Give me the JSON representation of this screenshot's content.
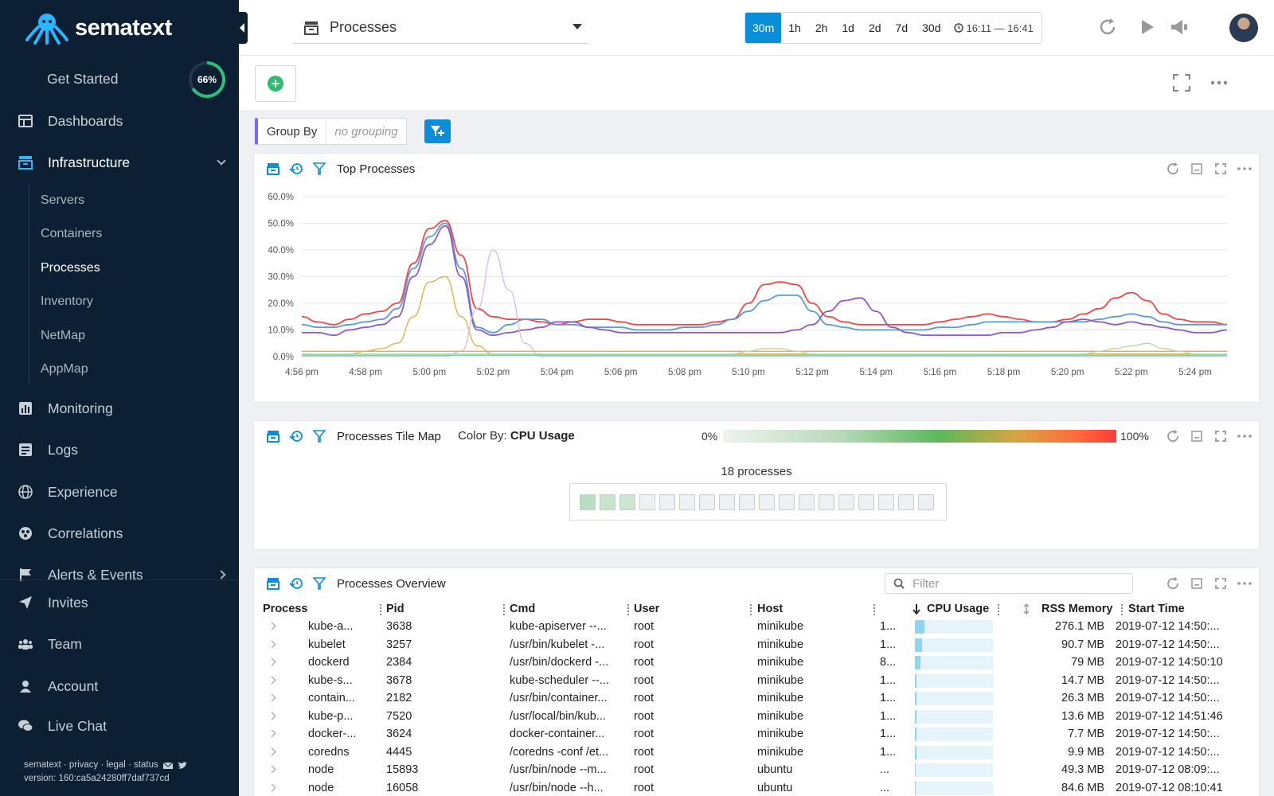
{
  "brand": {
    "name": "sematext"
  },
  "sidebar": {
    "get_started": {
      "label": "Get Started",
      "progress_pct": 66,
      "progress_text": "66%"
    },
    "items": [
      {
        "label": "Dashboards",
        "icon": "dashboard-icon"
      },
      {
        "label": "Infrastructure",
        "icon": "server-icon",
        "active": true,
        "expanded": true
      },
      {
        "label": "Monitoring",
        "icon": "bar-chart-icon"
      },
      {
        "label": "Logs",
        "icon": "logs-icon"
      },
      {
        "label": "Experience",
        "icon": "globe-icon"
      },
      {
        "label": "Correlations",
        "icon": "correlations-icon"
      },
      {
        "label": "Alerts & Events",
        "icon": "flag-icon"
      },
      {
        "label": "Invites",
        "icon": "send-icon"
      },
      {
        "label": "Team",
        "icon": "team-icon"
      },
      {
        "label": "Account",
        "icon": "user-icon"
      },
      {
        "label": "Live Chat",
        "icon": "chat-icon"
      }
    ],
    "sub_items": [
      "Servers",
      "Containers",
      "Processes",
      "Inventory",
      "NetMap",
      "AppMap"
    ],
    "active_sub": "Processes",
    "footer_links": "sematext · privacy · legal · status",
    "version": "version: 160:ca5a24280ff7daf737cd"
  },
  "topbar": {
    "app_selector": "Processes",
    "time_buttons": [
      "30m",
      "1h",
      "2h",
      "1d",
      "2d",
      "7d",
      "30d"
    ],
    "active_time": "30m",
    "time_range": "16:11 — 16:41"
  },
  "groupby": {
    "label": "Group By",
    "value": "no grouping"
  },
  "panels": {
    "top_processes": {
      "title": "Top Processes"
    },
    "tile_map": {
      "title": "Processes Tile Map",
      "color_by_label": "Color By:",
      "color_by_value": "CPU Usage",
      "scale_min": "0%",
      "scale_max": "100%",
      "count_text": "18 processes",
      "tile_levels": [
        0.18,
        0.14,
        0.12,
        0.02,
        0.02,
        0.02,
        0.02,
        0.02,
        0.01,
        0.01,
        0.01,
        0.01,
        0.01,
        0.01,
        0.01,
        0.01,
        0.01,
        0.01
      ]
    },
    "overview": {
      "title": "Processes Overview",
      "filter_placeholder": "Filter",
      "columns": [
        "Process",
        "Pid",
        "Cmd",
        "User",
        "Host",
        "CPU Usage",
        "RSS Memory",
        "Start Time"
      ],
      "rows": [
        {
          "process": "kube-a...",
          "pid": "3638",
          "cmd": "kube-apiserver --...",
          "user": "root",
          "host": "minikube",
          "cpu_text": "1...",
          "cpu_pct": 12,
          "rss": "276.1 MB",
          "start": "2019-07-12 14:50:..."
        },
        {
          "process": "kubelet",
          "pid": "3257",
          "cmd": "/usr/bin/kubelet -...",
          "user": "root",
          "host": "minikube",
          "cpu_text": "1...",
          "cpu_pct": 9,
          "rss": "90.7 MB",
          "start": "2019-07-12 14:50:..."
        },
        {
          "process": "dockerd",
          "pid": "2384",
          "cmd": "/usr/bin/dockerd -...",
          "user": "root",
          "host": "minikube",
          "cpu_text": "8...",
          "cpu_pct": 7,
          "rss": "79 MB",
          "start": "2019-07-12 14:50:10"
        },
        {
          "process": "kube-s...",
          "pid": "3678",
          "cmd": "kube-scheduler --...",
          "user": "root",
          "host": "minikube",
          "cpu_text": "1...",
          "cpu_pct": 2,
          "rss": "14.7 MB",
          "start": "2019-07-12 14:50:..."
        },
        {
          "process": "contain...",
          "pid": "2182",
          "cmd": "/usr/bin/container...",
          "user": "root",
          "host": "minikube",
          "cpu_text": "1...",
          "cpu_pct": 2,
          "rss": "26.3 MB",
          "start": "2019-07-12 14:50:..."
        },
        {
          "process": "kube-p...",
          "pid": "7520",
          "cmd": "/usr/local/bin/kub...",
          "user": "root",
          "host": "minikube",
          "cpu_text": "1...",
          "cpu_pct": 2,
          "rss": "13.6 MB",
          "start": "2019-07-12 14:51:46"
        },
        {
          "process": "docker-...",
          "pid": "3624",
          "cmd": "docker-container...",
          "user": "root",
          "host": "minikube",
          "cpu_text": "1...",
          "cpu_pct": 2,
          "rss": "7.7 MB",
          "start": "2019-07-12 14:50:..."
        },
        {
          "process": "coredns",
          "pid": "4445",
          "cmd": "/coredns -conf /et...",
          "user": "root",
          "host": "minikube",
          "cpu_text": "1...",
          "cpu_pct": 2,
          "rss": "9.9 MB",
          "start": "2019-07-12 14:50:..."
        },
        {
          "process": "node",
          "pid": "15893",
          "cmd": "/usr/bin/node --m...",
          "user": "root",
          "host": "ubuntu",
          "cpu_text": "...",
          "cpu_pct": 1,
          "rss": "49.3 MB",
          "start": "2019-07-12 08:09:..."
        },
        {
          "process": "node",
          "pid": "16058",
          "cmd": "/usr/bin/node --h...",
          "user": "root",
          "host": "ubuntu",
          "cpu_text": "...",
          "cpu_pct": 1,
          "rss": "84.6 MB",
          "start": "2019-07-12 08:10:41"
        }
      ]
    }
  },
  "chart_data": {
    "type": "line",
    "title": "Top Processes",
    "ylim": [
      0,
      60
    ],
    "y_ticks": [
      "0.0%",
      "10.0%",
      "20.0%",
      "30.0%",
      "40.0%",
      "50.0%",
      "60.0%"
    ],
    "x_ticks": [
      "4:56 pm",
      "4:58 pm",
      "5:00 pm",
      "5:02 pm",
      "5:04 pm",
      "5:06 pm",
      "5:08 pm",
      "5:10 pm",
      "5:12 pm",
      "5:14 pm",
      "5:16 pm",
      "5:18 pm",
      "5:20 pm",
      "5:22 pm",
      "5:24 pm"
    ],
    "x": [
      0,
      0.5,
      1,
      1.5,
      2,
      2.5,
      3,
      3.5,
      4,
      4.5,
      5,
      5.5,
      6,
      6.5,
      7,
      7.5,
      8,
      8.5,
      9,
      9.5,
      10,
      10.5,
      11,
      11.5,
      12,
      12.5,
      13,
      13.5,
      14,
      14.5,
      15,
      15.5,
      16,
      16.5,
      17,
      17.5,
      18,
      18.5,
      19,
      19.5,
      20,
      20.5,
      21,
      21.5,
      22,
      22.5,
      23,
      23.5,
      24,
      24.5,
      25,
      25.5,
      26,
      26.5,
      27,
      27.5,
      28,
      28.5,
      29
    ],
    "grid": true,
    "series": [
      {
        "color": "#f04848",
        "values": [
          15,
          13,
          12,
          14,
          16,
          17,
          20,
          35,
          48,
          51,
          38,
          18,
          15,
          14,
          14,
          13,
          12,
          13,
          14,
          14,
          13,
          12,
          12,
          12,
          12,
          12,
          13,
          14,
          20,
          27,
          28,
          27,
          20,
          15,
          13,
          12,
          12,
          12,
          12,
          12,
          13,
          14,
          15,
          16,
          15,
          14,
          13,
          13,
          14,
          16,
          18,
          22,
          24,
          21,
          16,
          14,
          13,
          13,
          12
        ]
      },
      {
        "color": "#5b9bd5",
        "values": [
          12,
          11,
          11,
          12,
          13,
          14,
          18,
          33,
          45,
          50,
          33,
          11,
          9,
          12,
          14,
          14,
          12,
          12,
          11,
          11,
          11,
          10,
          10,
          10,
          11,
          11,
          12,
          14,
          17,
          21,
          23,
          23,
          17,
          12,
          11,
          10,
          10,
          10,
          10,
          10,
          11,
          11,
          12,
          13,
          13,
          13,
          13,
          13,
          13,
          13,
          14,
          15,
          16,
          15,
          13,
          12,
          12,
          12,
          12
        ]
      },
      {
        "color": "#8e5bc0",
        "values": [
          9,
          9,
          8,
          10,
          11,
          12,
          15,
          30,
          42,
          49,
          30,
          10,
          8,
          9,
          10,
          11,
          13,
          13,
          11,
          10,
          9,
          9,
          9,
          9,
          9,
          9,
          9,
          9,
          9,
          9,
          9,
          10,
          12,
          17,
          21,
          22,
          17,
          11,
          9,
          8,
          8,
          8,
          8,
          8,
          9,
          9,
          10,
          11,
          13,
          14,
          13,
          12,
          13,
          12,
          11,
          10,
          9,
          9,
          10
        ]
      },
      {
        "color": "#d9b44a",
        "values": [
          1,
          1,
          1,
          1,
          2,
          3,
          5,
          15,
          28,
          30,
          15,
          4,
          1,
          1,
          1,
          1,
          1,
          1,
          1,
          1,
          1,
          1,
          1,
          1,
          1,
          1,
          1,
          1,
          1,
          1,
          1,
          1,
          1,
          1,
          1,
          1,
          1,
          1,
          1,
          1,
          1,
          1,
          1,
          1,
          1,
          1,
          1,
          1,
          1,
          1,
          1,
          1,
          1,
          1,
          1,
          1,
          1,
          1,
          1
        ]
      },
      {
        "color": "#d8bfe0",
        "values": [
          0,
          0,
          0,
          0,
          0,
          0,
          0,
          0,
          0,
          0,
          2,
          18,
          40,
          25,
          5,
          0,
          0,
          0,
          0,
          0,
          0,
          0,
          0,
          0,
          0,
          0,
          0,
          0,
          0,
          0,
          0,
          0,
          0,
          0,
          0,
          0,
          0,
          0,
          0,
          0,
          0,
          0,
          0,
          0,
          0,
          0,
          0,
          0,
          0,
          0,
          0,
          0,
          0,
          0,
          0,
          0,
          0,
          0,
          0
        ]
      },
      {
        "color": "#f5a35a",
        "values": [
          2,
          2,
          2,
          2,
          2,
          2,
          2,
          2,
          2,
          2,
          2,
          2,
          2,
          2,
          2,
          2,
          2,
          2,
          2,
          2,
          2,
          2,
          2,
          2,
          2,
          2,
          2,
          2,
          2,
          2,
          2,
          2,
          2,
          2,
          2,
          2,
          2,
          2,
          2,
          2,
          2,
          2,
          2,
          2,
          2,
          2,
          2,
          2,
          2,
          2,
          2,
          2,
          2,
          2,
          2,
          2,
          2,
          2,
          2
        ]
      },
      {
        "color": "#b5d99c",
        "values": [
          1,
          1,
          1,
          1,
          1,
          1,
          1,
          1,
          1,
          1,
          1,
          1,
          1,
          1,
          1,
          1,
          1,
          1,
          1,
          1,
          1,
          1,
          1,
          1,
          1,
          1,
          1,
          1,
          2,
          3,
          3,
          2,
          1,
          1,
          1,
          1,
          1,
          1,
          1,
          1,
          1,
          1,
          1,
          1,
          1,
          1,
          1,
          1,
          1,
          1,
          2,
          3,
          4,
          5,
          3,
          2,
          1,
          1,
          1
        ]
      },
      {
        "color": "#7fc7b8",
        "values": [
          0.5,
          0.5,
          0.5,
          0.5,
          0.5,
          0.5,
          0.5,
          0.5,
          0.5,
          0.5,
          0.5,
          0.5,
          0.5,
          0.5,
          0.5,
          0.5,
          0.5,
          0.5,
          0.5,
          0.5,
          0.5,
          0.5,
          0.5,
          0.5,
          0.5,
          0.5,
          0.5,
          0.5,
          0.5,
          0.5,
          0.5,
          0.5,
          0.5,
          0.5,
          0.5,
          0.5,
          0.5,
          0.5,
          0.5,
          0.5,
          0.5,
          0.5,
          0.5,
          0.5,
          0.5,
          0.5,
          0.5,
          0.5,
          0.5,
          0.5,
          0.5,
          0.5,
          0.5,
          0.5,
          0.5,
          0.5,
          0.5,
          0.5,
          0.5
        ]
      }
    ]
  }
}
